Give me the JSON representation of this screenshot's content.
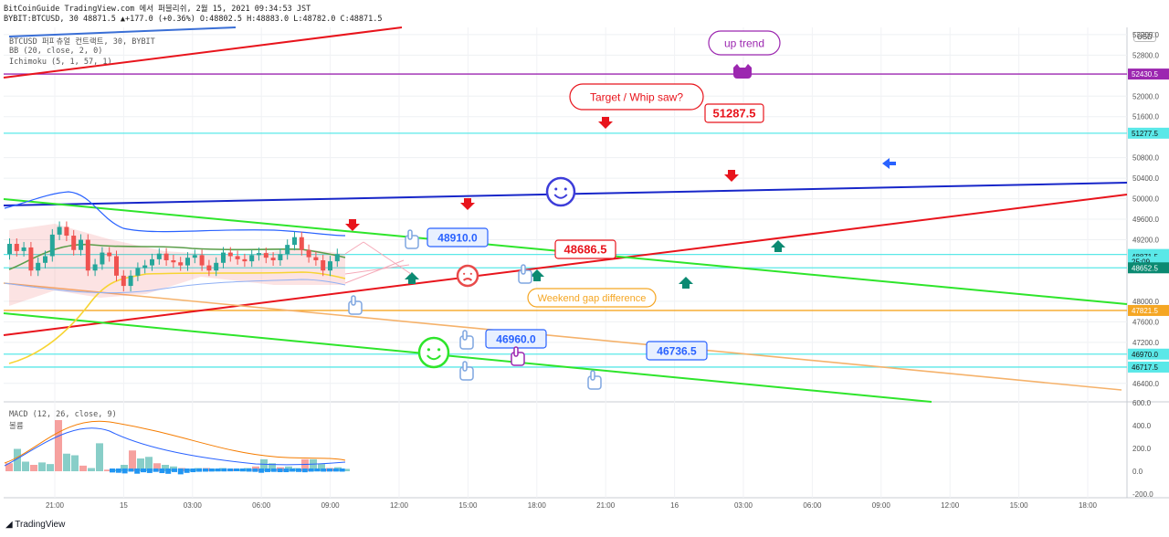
{
  "header": {
    "line1": "BitCoinGuide TradingView.com 에서 퍼블리쉬, 2월 15, 2021 09:34:53 JST",
    "line2": "BYBIT:BTCUSD, 30 48871.5 ▲+177.0 (+0.36%) O:48802.5 H:48883.0 L:48782.0 C:48871.5"
  },
  "indicators": [
    "BTCUSD 퍼피츄얼 컨트랙트, 30, BYBIT",
    "BB (20, close, 2, 0)",
    "Ichimoku (5, 1, 57, 1)"
  ],
  "currency_button": "USD",
  "footer": {
    "logo": "TradingView"
  },
  "macd": {
    "label": "MACD (12, 26, close, 9)",
    "sub": "볼륨"
  },
  "colors": {
    "red": "#e8141c",
    "blue": "#1726c9",
    "green": "#2ee52b",
    "purple": "#9c27b0",
    "cyan": "#5ae8e8",
    "orange": "#f5a623",
    "teal": "#0b8a72",
    "bull": "#26a69a",
    "bear": "#ef5350"
  },
  "chart_data": {
    "type": "line",
    "symbol": "BYBIT:BTCUSD",
    "interval": "30",
    "y_axis": {
      "ticks": [
        53200,
        52800,
        52000,
        51600,
        50800,
        50400,
        50000,
        49600,
        49200,
        48000,
        47600,
        47200,
        46400
      ],
      "ylim": [
        46040,
        53340
      ]
    },
    "x_axis": {
      "labels": [
        "21:00",
        "15",
        "03:00",
        "06:00",
        "09:00",
        "12:00",
        "15:00",
        "18:00",
        "21:00",
        "16",
        "03:00",
        "06:00",
        "09:00",
        "12:00",
        "15:00",
        "18:00"
      ]
    },
    "price_labels": [
      {
        "text": "52430.5",
        "value": 52430.5,
        "color": "#9c27b0"
      },
      {
        "text": "51277.5",
        "value": 51277.5,
        "color": "#5ae8e8"
      },
      {
        "text": "48913.0",
        "value": 48913.0,
        "color": "#5ae8e8"
      },
      {
        "text": "48871.5",
        "value": 48871.5,
        "color": "#5ae8e8"
      },
      {
        "text": "25:09",
        "value": 48770,
        "color": "#5ae8e8"
      },
      {
        "text": "48652.5",
        "value": 48652.5,
        "color": "#0b8a72"
      },
      {
        "text": "47821.5",
        "value": 47821.5,
        "color": "#f5a623"
      },
      {
        "text": "46970.0",
        "value": 46970.0,
        "color": "#5ae8e8"
      },
      {
        "text": "46717.5",
        "value": 46717.5,
        "color": "#5ae8e8"
      }
    ],
    "horizontal_lines": [
      {
        "value": 52430.5,
        "color": "#9c27b0"
      },
      {
        "value": 51277.5,
        "color": "#5ae8e8"
      },
      {
        "value": 48913.0,
        "color": "#5ae8e8"
      },
      {
        "value": 48652.5,
        "color": "#5ae8e8"
      },
      {
        "value": 47821.5,
        "color": "#f5a623"
      },
      {
        "value": 46970.0,
        "color": "#5ae8e8"
      },
      {
        "value": 46717.5,
        "color": "#5ae8e8"
      }
    ],
    "annotations": [
      {
        "text": "up trend",
        "color": "#9c27b0"
      },
      {
        "text": "Target / Whip saw?",
        "color": "#e8141c"
      },
      {
        "text": "51287.5",
        "color": "#e8141c"
      },
      {
        "text": "48910.0",
        "color": "#2962ff"
      },
      {
        "text": "48686.5",
        "color": "#e8141c"
      },
      {
        "text": "Weekend gap difference",
        "color": "#f5a623"
      },
      {
        "text": "46960.0",
        "color": "#2962ff"
      },
      {
        "text": "46736.5",
        "color": "#2962ff"
      }
    ],
    "macd_ticks": [
      600.0,
      400.0,
      200.0,
      0.0,
      -200.0
    ]
  }
}
